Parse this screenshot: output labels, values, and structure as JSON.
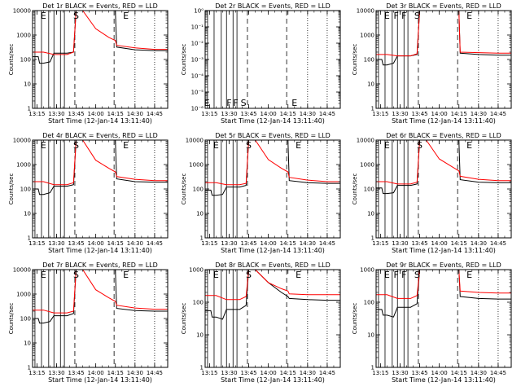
{
  "figure": {
    "time_ticks": [
      "13:15",
      "13:30",
      "13:45",
      "14:00",
      "14:15",
      "14:30",
      "14:45"
    ],
    "colors": {
      "events": "#000000",
      "lld": "#ff0000",
      "background": "#ffffff"
    }
  },
  "chart_data": [
    {
      "type": "line",
      "title": "Det 1r BLACK = Events, RED = LLD",
      "xlabel": "Start Time (12-Jan-14 13:11:40)",
      "ylabel": "Counts/sec",
      "x_range": [
        "13:11:40",
        "14:55:00"
      ],
      "ylim": [
        1,
        10000
      ],
      "y_scale": "log",
      "y_ticks": [
        "1",
        "10",
        "100",
        "1000",
        "10000"
      ],
      "markers": [
        {
          "label": "E",
          "time": "13:20"
        },
        {
          "label": "S",
          "time": "13:45"
        },
        {
          "label": "E",
          "time": "14:23"
        }
      ],
      "series": [
        {
          "name": "Events",
          "color": "#000000",
          "x": [
            "13:12",
            "13:16",
            "13:17",
            "13:20",
            "13:25",
            "13:28",
            "13:38",
            "13:43",
            "13:45",
            "13:50",
            "14:00",
            "14:10",
            "14:15",
            "14:16",
            "14:30",
            "14:45",
            "14:55"
          ],
          "values": [
            130,
            130,
            70,
            70,
            80,
            180,
            180,
            200,
            10000,
            10000,
            10000,
            10000,
            10000,
            320,
            250,
            230,
            230
          ]
        },
        {
          "name": "LLD",
          "color": "#ff0000",
          "x": [
            "13:12",
            "13:20",
            "13:28",
            "13:38",
            "13:43",
            "13:45",
            "13:50",
            "14:00",
            "14:10",
            "14:15",
            "14:16",
            "14:30",
            "14:45",
            "14:55"
          ],
          "values": [
            200,
            200,
            160,
            160,
            200,
            10000,
            10000,
            1800,
            800,
            600,
            380,
            300,
            260,
            260
          ]
        }
      ]
    },
    {
      "type": "line",
      "title": "Det 2r BLACK = Events, RED = LLD",
      "xlabel": "Start Time (12-Jan-14 13:11:40)",
      "ylabel": "Counts/sec",
      "x_range": [
        "13:11:40",
        "14:55:00"
      ],
      "ylim": [
        1e-06,
        1
      ],
      "y_scale": "log",
      "y_ticks": [
        "10⁰",
        "10⁻¹",
        "10⁻²",
        "10⁻³",
        "10⁻⁴",
        "10⁻⁵",
        "10⁻⁶"
      ],
      "markers": [
        {
          "label": "E",
          "time": "13:13"
        },
        {
          "label": "F",
          "time": "13:30"
        },
        {
          "label": "F",
          "time": "13:35"
        },
        {
          "label": "S",
          "time": "13:41"
        },
        {
          "label": "E",
          "time": "14:20"
        }
      ],
      "series": []
    },
    {
      "type": "line",
      "title": "Det 3r BLACK = Events, RED = LLD",
      "xlabel": "Start Time (12-Jan-14 13:11:40)",
      "ylabel": "Counts/sec",
      "x_range": [
        "13:11:40",
        "14:55:00"
      ],
      "ylim": [
        1,
        10000
      ],
      "y_scale": "log",
      "y_ticks": [
        "1",
        "10",
        "100",
        "1000",
        "10000"
      ],
      "markers": [
        {
          "label": "E",
          "time": "13:20"
        },
        {
          "label": "F",
          "time": "13:27"
        },
        {
          "label": "F",
          "time": "13:33"
        },
        {
          "label": "S",
          "time": "13:43"
        },
        {
          "label": "E",
          "time": "14:23"
        }
      ],
      "series": [
        {
          "name": "Events",
          "color": "#000000",
          "x": [
            "13:12",
            "13:16",
            "13:17",
            "13:20",
            "13:25",
            "13:28",
            "13:38",
            "13:43",
            "13:45",
            "13:50",
            "14:00",
            "14:10",
            "14:15",
            "14:16",
            "14:30",
            "14:45",
            "14:55"
          ],
          "values": [
            100,
            100,
            60,
            60,
            70,
            140,
            140,
            160,
            10000,
            10000,
            10000,
            10000,
            10000,
            180,
            160,
            150,
            150
          ]
        },
        {
          "name": "LLD",
          "color": "#ff0000",
          "x": [
            "13:12",
            "13:20",
            "13:28",
            "13:38",
            "13:43",
            "13:45",
            "13:50",
            "14:00",
            "14:10",
            "14:15",
            "14:16",
            "14:30",
            "14:45",
            "14:55"
          ],
          "values": [
            160,
            160,
            140,
            140,
            170,
            10000,
            10000,
            10000,
            10000,
            10000,
            200,
            190,
            180,
            180
          ]
        }
      ]
    },
    {
      "type": "line",
      "title": "Det 4r BLACK = Events, RED = LLD",
      "xlabel": "Start Time (12-Jan-14 13:11:40)",
      "ylabel": "Counts/sec",
      "x_range": [
        "13:11:40",
        "14:55:00"
      ],
      "ylim": [
        1,
        10000
      ],
      "y_scale": "log",
      "y_ticks": [
        "1",
        "10",
        "100",
        "1000",
        "10000"
      ],
      "markers": [
        {
          "label": "E",
          "time": "13:20"
        },
        {
          "label": "S",
          "time": "13:45"
        },
        {
          "label": "E",
          "time": "14:23"
        }
      ],
      "series": [
        {
          "name": "Events",
          "color": "#000000",
          "x": [
            "13:12",
            "13:16",
            "13:17",
            "13:20",
            "13:25",
            "13:28",
            "13:38",
            "13:43",
            "13:45",
            "13:50",
            "14:00",
            "14:10",
            "14:15",
            "14:16",
            "14:30",
            "14:45",
            "14:55"
          ],
          "values": [
            100,
            100,
            60,
            60,
            70,
            130,
            130,
            150,
            10000,
            10000,
            10000,
            10000,
            10000,
            260,
            200,
            190,
            190
          ]
        },
        {
          "name": "LLD",
          "color": "#ff0000",
          "x": [
            "13:12",
            "13:20",
            "13:28",
            "13:38",
            "13:43",
            "13:45",
            "13:50",
            "14:00",
            "14:10",
            "14:15",
            "14:16",
            "14:30",
            "14:45",
            "14:55"
          ],
          "values": [
            200,
            200,
            150,
            150,
            180,
            10000,
            10000,
            1500,
            700,
            500,
            320,
            250,
            220,
            220
          ]
        }
      ]
    },
    {
      "type": "line",
      "title": "Det 5r BLACK = Events, RED = LLD",
      "xlabel": "Start Time (12-Jan-14 13:11:40)",
      "ylabel": "Counts/sec",
      "x_range": [
        "13:11:40",
        "14:55:00"
      ],
      "ylim": [
        1,
        10000
      ],
      "y_scale": "log",
      "y_ticks": [
        "1",
        "10",
        "100",
        "1000",
        "10000"
      ],
      "markers": [
        {
          "label": "E",
          "time": "13:20"
        },
        {
          "label": "S",
          "time": "13:45"
        },
        {
          "label": "E",
          "time": "14:23"
        }
      ],
      "series": [
        {
          "name": "Events",
          "color": "#000000",
          "x": [
            "13:12",
            "13:16",
            "13:17",
            "13:20",
            "13:25",
            "13:28",
            "13:38",
            "13:43",
            "13:45",
            "13:50",
            "14:00",
            "14:10",
            "14:15",
            "14:16",
            "14:30",
            "14:45",
            "14:55"
          ],
          "values": [
            90,
            90,
            55,
            55,
            60,
            120,
            120,
            140,
            10000,
            10000,
            10000,
            10000,
            10000,
            220,
            180,
            170,
            170
          ]
        },
        {
          "name": "LLD",
          "color": "#ff0000",
          "x": [
            "13:12",
            "13:20",
            "13:28",
            "13:38",
            "13:43",
            "13:45",
            "13:50",
            "14:00",
            "14:10",
            "14:15",
            "14:16",
            "14:30",
            "14:45",
            "14:55"
          ],
          "values": [
            180,
            180,
            150,
            150,
            170,
            10000,
            10000,
            1600,
            700,
            500,
            300,
            230,
            200,
            200
          ]
        }
      ]
    },
    {
      "type": "line",
      "title": "Det 6r BLACK = Events, RED = LLD",
      "xlabel": "Start Time (12-Jan-14 13:11:40)",
      "ylabel": "Counts/sec",
      "x_range": [
        "13:11:40",
        "14:55:00"
      ],
      "ylim": [
        1,
        10000
      ],
      "y_scale": "log",
      "y_ticks": [
        "1",
        "10",
        "100",
        "1000",
        "10000"
      ],
      "markers": [
        {
          "label": "E",
          "time": "13:20"
        },
        {
          "label": "S",
          "time": "13:45"
        },
        {
          "label": "E",
          "time": "14:23"
        }
      ],
      "series": [
        {
          "name": "Events",
          "color": "#000000",
          "x": [
            "13:12",
            "13:16",
            "13:17",
            "13:20",
            "13:25",
            "13:28",
            "13:38",
            "13:43",
            "13:45",
            "13:50",
            "14:00",
            "14:10",
            "14:15",
            "14:16",
            "14:30",
            "14:45",
            "14:55"
          ],
          "values": [
            110,
            110,
            65,
            65,
            70,
            140,
            140,
            160,
            10000,
            10000,
            10000,
            10000,
            10000,
            240,
            190,
            180,
            180
          ]
        },
        {
          "name": "LLD",
          "color": "#ff0000",
          "x": [
            "13:12",
            "13:20",
            "13:28",
            "13:38",
            "13:43",
            "13:45",
            "13:50",
            "14:00",
            "14:10",
            "14:15",
            "14:16",
            "14:30",
            "14:45",
            "14:55"
          ],
          "values": [
            200,
            200,
            160,
            160,
            190,
            10000,
            10000,
            1700,
            800,
            550,
            330,
            250,
            220,
            220
          ]
        }
      ]
    },
    {
      "type": "line",
      "title": "Det 7r BLACK = Events, RED = LLD",
      "xlabel": "Start Time (12-Jan-14 13:11:40)",
      "ylabel": "Counts/sec",
      "x_range": [
        "13:11:40",
        "14:55:00"
      ],
      "ylim": [
        1,
        10000
      ],
      "y_scale": "log",
      "y_ticks": [
        "1",
        "10",
        "100",
        "1000",
        "10000"
      ],
      "markers": [
        {
          "label": "E",
          "time": "13:20"
        },
        {
          "label": "S",
          "time": "13:45"
        },
        {
          "label": "E",
          "time": "14:23"
        }
      ],
      "series": [
        {
          "name": "Events",
          "color": "#000000",
          "x": [
            "13:12",
            "13:16",
            "13:17",
            "13:20",
            "13:25",
            "13:28",
            "13:38",
            "13:43",
            "13:45",
            "13:50",
            "14:00",
            "14:10",
            "14:15",
            "14:16",
            "14:30",
            "14:45",
            "14:55"
          ],
          "values": [
            100,
            100,
            65,
            65,
            75,
            130,
            130,
            160,
            10000,
            10000,
            10000,
            10000,
            10000,
            260,
            210,
            200,
            200
          ]
        },
        {
          "name": "LLD",
          "color": "#ff0000",
          "x": [
            "13:12",
            "13:20",
            "13:28",
            "13:38",
            "13:43",
            "13:45",
            "13:50",
            "14:00",
            "14:10",
            "14:15",
            "14:16",
            "14:30",
            "14:45",
            "14:55"
          ],
          "values": [
            220,
            220,
            170,
            170,
            200,
            10000,
            10000,
            1500,
            700,
            500,
            350,
            270,
            240,
            240
          ]
        }
      ]
    },
    {
      "type": "line",
      "title": "Det 8r BLACK = Events, RED = LLD",
      "xlabel": "Start Time (12-Jan-14 13:11:40)",
      "ylabel": "Counts/sec",
      "x_range": [
        "13:11:40",
        "14:55:00"
      ],
      "ylim": [
        1,
        1000
      ],
      "y_scale": "log",
      "y_ticks": [
        "1",
        "10",
        "100",
        "1000"
      ],
      "markers": [
        {
          "label": "E",
          "time": "13:20"
        },
        {
          "label": "S",
          "time": "13:45"
        },
        {
          "label": "E",
          "time": "14:23"
        }
      ],
      "series": [
        {
          "name": "Events",
          "color": "#000000",
          "x": [
            "13:12",
            "13:16",
            "13:17",
            "13:20",
            "13:25",
            "13:28",
            "13:38",
            "13:43",
            "13:45",
            "13:50",
            "14:00",
            "14:10",
            "14:15",
            "14:16",
            "14:30",
            "14:45",
            "14:55"
          ],
          "values": [
            55,
            55,
            35,
            35,
            30,
            60,
            60,
            80,
            1000,
            1000,
            400,
            200,
            150,
            130,
            120,
            115,
            115
          ]
        },
        {
          "name": "LLD",
          "color": "#ff0000",
          "x": [
            "13:12",
            "13:20",
            "13:28",
            "13:38",
            "13:43",
            "13:45",
            "13:50",
            "14:00",
            "14:10",
            "14:15",
            "14:16",
            "14:30",
            "14:45",
            "14:55"
          ],
          "values": [
            160,
            160,
            120,
            120,
            150,
            1000,
            1000,
            400,
            260,
            220,
            180,
            170,
            170,
            170
          ]
        }
      ]
    },
    {
      "type": "line",
      "title": "Det 9r BLACK = Events, RED = LLD",
      "xlabel": "Start Time (12-Jan-14 13:11:40)",
      "ylabel": "Counts/sec",
      "x_range": [
        "13:11:40",
        "14:55:00"
      ],
      "ylim": [
        1,
        1000
      ],
      "y_scale": "log",
      "y_ticks": [
        "1",
        "10",
        "100",
        "1000"
      ],
      "markers": [
        {
          "label": "E",
          "time": "13:20"
        },
        {
          "label": "F",
          "time": "13:27"
        },
        {
          "label": "F",
          "time": "13:33"
        },
        {
          "label": "S",
          "time": "13:43"
        },
        {
          "label": "E",
          "time": "14:23"
        }
      ],
      "series": [
        {
          "name": "Events",
          "color": "#000000",
          "x": [
            "13:12",
            "13:16",
            "13:17",
            "13:20",
            "13:25",
            "13:28",
            "13:38",
            "13:43",
            "13:45",
            "13:50",
            "14:00",
            "14:10",
            "14:15",
            "14:16",
            "14:30",
            "14:45",
            "14:55"
          ],
          "values": [
            60,
            60,
            40,
            40,
            35,
            70,
            70,
            90,
            1000,
            1000,
            1000,
            1000,
            1000,
            150,
            130,
            125,
            125
          ]
        },
        {
          "name": "LLD",
          "color": "#ff0000",
          "x": [
            "13:12",
            "13:20",
            "13:28",
            "13:38",
            "13:43",
            "13:45",
            "13:50",
            "14:00",
            "14:10",
            "14:15",
            "14:16",
            "14:30",
            "14:45",
            "14:55"
          ],
          "values": [
            170,
            170,
            130,
            130,
            160,
            1000,
            1000,
            1000,
            1000,
            1000,
            220,
            200,
            190,
            190
          ]
        }
      ]
    }
  ]
}
